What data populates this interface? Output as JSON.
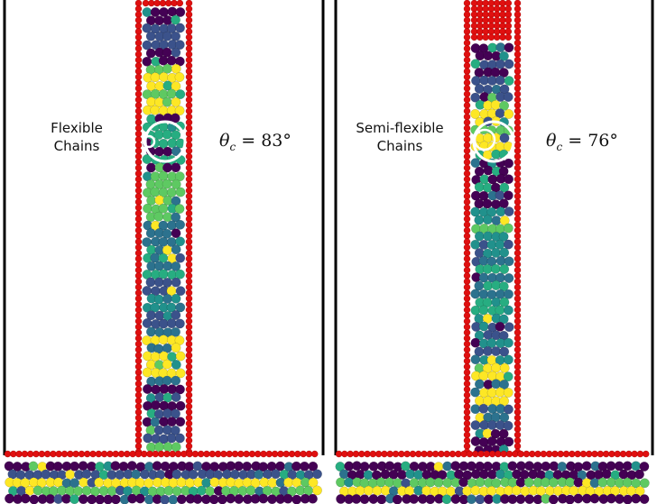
{
  "panels": [
    {
      "caption_line1": "Flexible",
      "caption_line2": "Chains",
      "angle_symbol": "θ",
      "angle_subscript": "c",
      "angle_text": "= 83°"
    },
    {
      "caption_line1": "Semi-flexible",
      "caption_line2": "Chains",
      "angle_symbol": "θ",
      "angle_subscript": "c",
      "angle_text": "= 76°"
    }
  ],
  "colors": {
    "wall": "#e01010",
    "frame": "#000000",
    "chain_palette": [
      "#440154",
      "#3b528b",
      "#21918c",
      "#5ec962",
      "#fde725",
      "#2c728e",
      "#27ad81"
    ],
    "circle": "#ffffff"
  }
}
